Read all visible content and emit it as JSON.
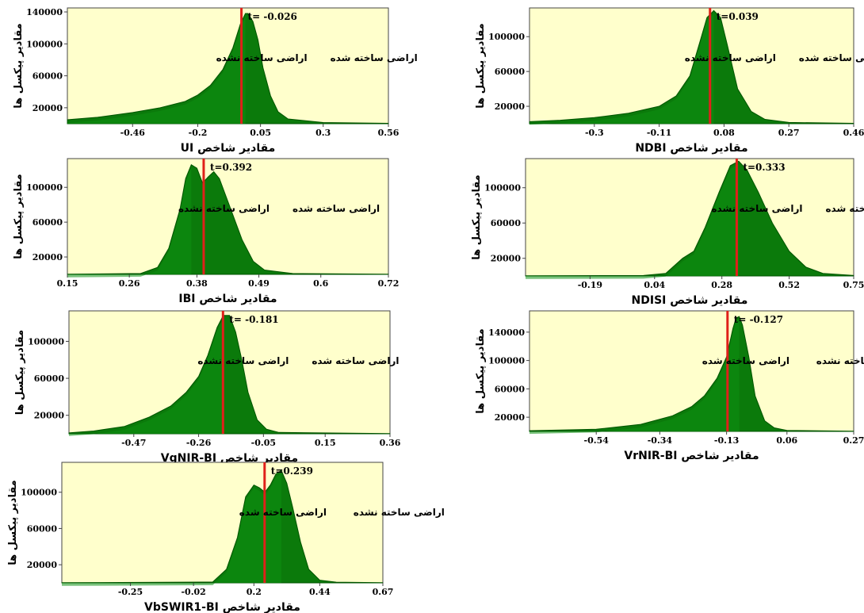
{
  "page": {
    "colors": {
      "plot_background": "#ffffcc",
      "histogram_fill": "#0b7a0b",
      "histogram_edge": "#005400",
      "threshold_line": "#e0201a",
      "axis": "#444444",
      "text": "#000000"
    }
  },
  "chart_data": [
    {
      "id": "ui",
      "type": "area",
      "xlabel": "مقادیر شاخص UI",
      "ylabel": "مقادیر پیکسل ها",
      "x_ticks": [
        "-0.46",
        "-0.2",
        "0.05",
        "0.3",
        "0.56"
      ],
      "x_tick_values": [
        -0.46,
        -0.2,
        0.05,
        0.3,
        0.56
      ],
      "y_ticks": [
        "20000",
        "60000",
        "100000",
        "140000"
      ],
      "y_tick_values": [
        20000,
        60000,
        100000,
        140000
      ],
      "xlim": [
        -0.72,
        0.56
      ],
      "ylim": [
        0,
        145000
      ],
      "threshold": -0.026,
      "threshold_label": "t= -0.026",
      "left_label": "اراضی ساخته نشده",
      "right_label": "اراضی ساخته شده",
      "x": [
        -0.72,
        -0.6,
        -0.46,
        -0.35,
        -0.25,
        -0.2,
        -0.15,
        -0.1,
        -0.06,
        -0.03,
        -0.01,
        0.0,
        0.02,
        0.04,
        0.06,
        0.09,
        0.12,
        0.16,
        0.3,
        0.56
      ],
      "y": [
        5000,
        8000,
        14000,
        20000,
        28000,
        36000,
        48000,
        68000,
        95000,
        125000,
        138000,
        138000,
        128000,
        105000,
        70000,
        35000,
        15000,
        6000,
        1500,
        500
      ]
    },
    {
      "id": "ndbi",
      "type": "area",
      "xlabel": "مقادیر شاخص NDBI",
      "ylabel": "مقادیر پیکسل ها",
      "x_ticks": [
        "-0.3",
        "-0.11",
        "0.08",
        "0.27",
        "0.46"
      ],
      "x_tick_values": [
        -0.3,
        -0.11,
        0.08,
        0.27,
        0.46
      ],
      "y_ticks": [
        "20000",
        "60000",
        "100000"
      ],
      "y_tick_values": [
        20000,
        60000,
        100000
      ],
      "xlim": [
        -0.49,
        0.46
      ],
      "ylim": [
        0,
        133000
      ],
      "threshold": 0.039,
      "threshold_label": "t=0.039",
      "left_label": "اراضی ساخته نشده",
      "right_label": "اراضی ساخته شده",
      "x": [
        -0.49,
        -0.4,
        -0.3,
        -0.2,
        -0.11,
        -0.06,
        -0.02,
        0.01,
        0.03,
        0.05,
        0.07,
        0.09,
        0.12,
        0.16,
        0.2,
        0.27,
        0.46
      ],
      "y": [
        2500,
        4000,
        7000,
        12000,
        20000,
        32000,
        55000,
        95000,
        122000,
        130000,
        122000,
        90000,
        40000,
        14000,
        5000,
        1500,
        500
      ]
    },
    {
      "id": "ibi",
      "type": "area",
      "xlabel": "مقادیر شاخص IBI",
      "ylabel": "مقادیر پیکسل ها",
      "x_ticks": [
        "0.15",
        "0.26",
        "0.38",
        "0.49",
        "0.6",
        "0.72"
      ],
      "x_tick_values": [
        0.15,
        0.26,
        0.38,
        0.49,
        0.6,
        0.72
      ],
      "y_ticks": [
        "20000",
        "60000",
        "100000"
      ],
      "y_tick_values": [
        20000,
        60000,
        100000
      ],
      "xlim": [
        0.15,
        0.72
      ],
      "ylim": [
        0,
        133000
      ],
      "threshold": 0.392,
      "threshold_label": "t=0.392",
      "left_label": "اراضی ساخته نشده",
      "right_label": "اراضی ساخته شده",
      "x": [
        0.15,
        0.28,
        0.31,
        0.33,
        0.35,
        0.36,
        0.37,
        0.38,
        0.39,
        0.4,
        0.41,
        0.42,
        0.44,
        0.46,
        0.48,
        0.5,
        0.55,
        0.72
      ],
      "y": [
        200,
        1000,
        8000,
        30000,
        75000,
        110000,
        126000,
        122000,
        105000,
        112000,
        118000,
        110000,
        75000,
        40000,
        15000,
        5000,
        1000,
        200
      ]
    },
    {
      "id": "ndisi",
      "type": "area",
      "xlabel": "مقادیر شاخص NDISI",
      "ylabel": "مقادیر پیکسل ها",
      "x_ticks": [
        "-0.19",
        "0.04",
        "0.28",
        "0.52",
        "0.75"
      ],
      "x_tick_values": [
        -0.19,
        0.04,
        0.28,
        0.52,
        0.75
      ],
      "y_ticks": [
        "20000",
        "60000",
        "100000"
      ],
      "y_tick_values": [
        20000,
        60000,
        100000
      ],
      "xlim": [
        -0.42,
        0.75
      ],
      "ylim": [
        0,
        133000
      ],
      "threshold": 0.333,
      "threshold_label": "t=0.333",
      "left_label": "اراضی ساخته نشده",
      "right_label": "اراضی ساخته شده",
      "x": [
        -0.42,
        0.0,
        0.08,
        0.14,
        0.18,
        0.22,
        0.27,
        0.31,
        0.34,
        0.37,
        0.41,
        0.46,
        0.52,
        0.58,
        0.64,
        0.75
      ],
      "y": [
        200,
        500,
        3000,
        20000,
        28000,
        55000,
        95000,
        125000,
        130000,
        120000,
        95000,
        60000,
        28000,
        10000,
        3000,
        500
      ]
    },
    {
      "id": "vgnir",
      "type": "area",
      "xlabel": "مقادیر شاخص VgNIR-BI",
      "ylabel": "مقادیر پیکسل ها",
      "x_ticks": [
        "-0.47",
        "-0.26",
        "-0.05",
        "0.15",
        "0.36"
      ],
      "x_tick_values": [
        -0.47,
        -0.26,
        -0.05,
        0.15,
        0.36
      ],
      "y_ticks": [
        "20000",
        "60000",
        "100000"
      ],
      "y_tick_values": [
        20000,
        60000,
        100000
      ],
      "xlim": [
        -0.68,
        0.36
      ],
      "ylim": [
        0,
        133000
      ],
      "threshold": -0.181,
      "threshold_label": "t= -0.181",
      "left_label": "اراضی ساخته نشده",
      "right_label": "اراضی ساخته شده",
      "x": [
        -0.68,
        -0.6,
        -0.5,
        -0.42,
        -0.35,
        -0.3,
        -0.26,
        -0.23,
        -0.2,
        -0.18,
        -0.16,
        -0.14,
        -0.12,
        -0.1,
        -0.07,
        -0.04,
        0.0,
        0.36
      ],
      "y": [
        1000,
        3000,
        8000,
        18000,
        30000,
        45000,
        62000,
        85000,
        115000,
        128000,
        128000,
        110000,
        80000,
        45000,
        15000,
        5000,
        1500,
        300
      ]
    },
    {
      "id": "vrnir",
      "type": "area",
      "xlabel": "مقادیر شاخص VrNIR-BI",
      "ylabel": "مقادیر پیکسل ها",
      "x_ticks": [
        "-0.54",
        "-0.34",
        "-0.13",
        "0.06",
        "0.27"
      ],
      "x_tick_values": [
        -0.54,
        -0.34,
        -0.13,
        0.06,
        0.27
      ],
      "y_ticks": [
        "20000",
        "60000",
        "100000",
        "140000"
      ],
      "y_tick_values": [
        20000,
        60000,
        100000,
        140000
      ],
      "xlim": [
        -0.75,
        0.27
      ],
      "ylim": [
        0,
        170000
      ],
      "threshold": -0.127,
      "threshold_label": "t= -0.127",
      "left_label": "اراضی ساخته شده",
      "right_label": "اراضی ساخته نشده",
      "x": [
        -0.75,
        -0.54,
        -0.4,
        -0.3,
        -0.24,
        -0.2,
        -0.16,
        -0.13,
        -0.11,
        -0.1,
        -0.09,
        -0.08,
        -0.06,
        -0.04,
        -0.01,
        0.02,
        0.06,
        0.27
      ],
      "y": [
        1000,
        3000,
        10000,
        22000,
        35000,
        50000,
        75000,
        105000,
        145000,
        160000,
        162000,
        150000,
        105000,
        50000,
        15000,
        5000,
        1500,
        300
      ]
    },
    {
      "id": "vbswir1",
      "type": "area",
      "xlabel": "مقادیر شاخص VbSWIR1-BI",
      "ylabel": "مقادیر پیکسل ها",
      "x_ticks": [
        "-0.25",
        "-0.02",
        "0.2",
        "0.44",
        "0.67"
      ],
      "x_tick_values": [
        -0.25,
        -0.02,
        0.2,
        0.44,
        0.67
      ],
      "y_ticks": [
        "20000",
        "60000",
        "100000"
      ],
      "y_tick_values": [
        20000,
        60000,
        100000
      ],
      "xlim": [
        -0.5,
        0.67
      ],
      "ylim": [
        0,
        133000
      ],
      "threshold": 0.239,
      "threshold_label": "t=0.239",
      "left_label": "اراضی ساخته شده",
      "right_label": "اراضی ساخته نشده",
      "x": [
        -0.5,
        0.05,
        0.1,
        0.14,
        0.17,
        0.2,
        0.22,
        0.24,
        0.26,
        0.28,
        0.3,
        0.32,
        0.34,
        0.37,
        0.4,
        0.44,
        0.5,
        0.67
      ],
      "y": [
        200,
        1000,
        15000,
        50000,
        95000,
        108000,
        105000,
        100000,
        108000,
        120000,
        124000,
        110000,
        85000,
        45000,
        15000,
        3000,
        800,
        200
      ]
    }
  ]
}
